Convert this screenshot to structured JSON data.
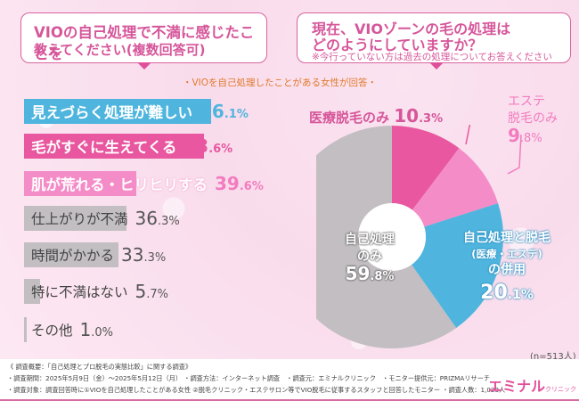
{
  "left_question": {
    "line1": "VIOの自己処理で不満に感じたことを",
    "line2": "教えてください(複数回答可)"
  },
  "right_question": {
    "line1": "現在、VIOゾーンの毛の処理は",
    "line2": "どのようにしていますか？",
    "note": "※今行っていない方は過去の処理についてお答えください"
  },
  "respondent_note": "・VIOを自己処理したことがある女性が回答・",
  "colors": {
    "blue": "#4fb5de",
    "magenta": "#e8579f",
    "pink": "#f48cc8",
    "gray": "#c2bec1",
    "accent_text": "#d6569a"
  },
  "chart_data": [
    {
      "type": "bar",
      "orientation": "horizontal",
      "title": "VIOの自己処理で不満に感じたことを教えてください(複数回答可)",
      "categories": [
        "見えづらく処理が難しい",
        "毛がすぐに生えてくる",
        "肌が荒れる・ヒリヒリする",
        "仕上がりが不満",
        "時間がかかる",
        "特に不満はない",
        "その他"
      ],
      "values": [
        66.1,
        63.6,
        39.6,
        36.3,
        33.3,
        5.7,
        1.0
      ],
      "value_labels": [
        {
          "int": "66",
          "dec": ".1%"
        },
        {
          "int": "63",
          "dec": ".6%"
        },
        {
          "int": "39",
          "dec": ".6%"
        },
        {
          "int": "36",
          "dec": ".3%"
        },
        {
          "int": "33",
          "dec": ".3%"
        },
        {
          "int": "5",
          "dec": ".7%"
        },
        {
          "int": "1",
          "dec": ".0%"
        }
      ],
      "bar_colors": [
        "#4fb5de",
        "#e8579f",
        "#f48cc8",
        "#c2bec1",
        "#c2bec1",
        "#c2bec1",
        "#c2bec1"
      ],
      "value_colors": [
        "#4fb5de",
        "#e8579f",
        "#f27cbf",
        "#555555",
        "#555555",
        "#555555",
        "#555555"
      ],
      "unit": "%"
    },
    {
      "type": "pie",
      "subtype": "donut",
      "title": "現在、VIOゾーンの毛の処理はどのようにしていますか？",
      "slices": [
        {
          "label": "医療脱毛のみ",
          "value": 10.3,
          "value_int": "10",
          "value_dec": ".3%",
          "color": "#e8579f"
        },
        {
          "label": "エステ脱毛のみ",
          "value": 9.8,
          "value_int": "9",
          "value_dec": ".8%",
          "color": "#f48cc8"
        },
        {
          "label": "自己処理と脱毛(医療・エステ)の併用",
          "value": 20.1,
          "value_int": "20",
          "value_dec": ".1%",
          "color": "#4fb5de"
        },
        {
          "label": "自己処理のみ",
          "value": 59.8,
          "value_int": "59",
          "value_dec": ".8%",
          "color": "#c2bec1"
        }
      ],
      "start": "top",
      "direction": "clockwise",
      "sample_note": "(n=513人)"
    }
  ],
  "pie_labels": {
    "medical_label": "医療脱毛のみ",
    "este_line1": "エステ",
    "este_line2": "脱毛のみ",
    "combo_line1": "自己処理と脱毛",
    "combo_line2": "(医療・エステ)",
    "combo_line3": "の併用",
    "self_line1": "自己処理",
    "self_line2": "のみ"
  },
  "footer": {
    "line1": "《 調査概要：「自己処理とプロ脱毛の実態比較」に関する調査》",
    "line2": "・調査期間：2025年5月9日（金）～2025年5月12日（月） ・調査方法：インターネット調査　・調査元：エミナルクリニック　・モニター提供元：PRIZMAリサーチ",
    "line3": "・調査対象：調査回答時に①VIOを自己処理したことがある女性 ②脱毛クリニック・エステサロン等でVIO脱毛に従事するスタッフと回答したモニター ・調査人数：1,023人",
    "logo_main": "エミナル",
    "logo_sub": "クリニック"
  }
}
